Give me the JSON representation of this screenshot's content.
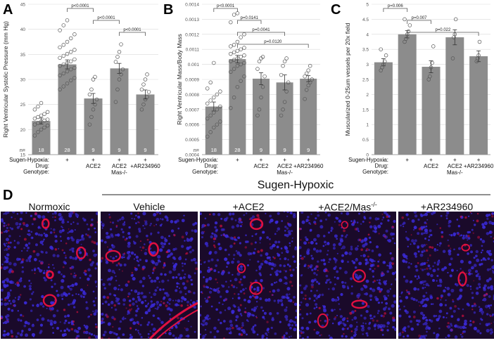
{
  "panels": {
    "A": "A",
    "B": "B",
    "C": "C",
    "D": "D"
  },
  "row_labels": {
    "sugen": "Sugen-Hypoxia:",
    "drug": "Drug:",
    "genotype": "Genotype:",
    "n": "n="
  },
  "groups": [
    {
      "sugen": "-",
      "drug": "",
      "genotype": ""
    },
    {
      "sugen": "+",
      "drug": "",
      "genotype": ""
    },
    {
      "sugen": "+",
      "drug": "ACE2",
      "genotype": ""
    },
    {
      "sugen": "+",
      "drug": "ACE2",
      "genotype": "Mas-/-"
    },
    {
      "sugen": "+",
      "drug": "+AR234960",
      "genotype": ""
    }
  ],
  "chart_data": [
    {
      "type": "bar",
      "panel": "A",
      "ylabel": "Right Ventricular Systolic Pressure (mm Hg)",
      "ylim": [
        15,
        45
      ],
      "yticks": [
        "15",
        "20",
        "25",
        "30",
        "35",
        "40",
        "45"
      ],
      "values": [
        21.7,
        33.0,
        26.2,
        32.2,
        27.0
      ],
      "errors": [
        0.6,
        0.9,
        1.0,
        1.0,
        0.9
      ],
      "n": [
        "18",
        "28",
        "9",
        "9",
        "9"
      ],
      "points": [
        [
          18.8,
          19.5,
          20.0,
          20.4,
          20.8,
          21.0,
          21.3,
          21.6,
          21.8,
          22.0,
          22.2,
          22.5,
          22.8,
          23.1,
          23.5,
          24.0,
          24.6,
          25.3
        ],
        [
          28.0,
          28.6,
          29.2,
          29.8,
          30.3,
          30.8,
          31.2,
          31.6,
          32.0,
          32.3,
          32.7,
          33.0,
          33.3,
          33.6,
          34.0,
          34.3,
          34.7,
          35.1,
          35.5,
          35.9,
          36.4,
          36.9,
          37.5,
          38.2,
          39.0,
          39.8,
          40.8,
          41.8
        ],
        [
          21.0,
          22.5,
          24.0,
          25.0,
          26.0,
          27.0,
          28.0,
          30.0,
          30.5
        ],
        [
          25.5,
          28.0,
          30.0,
          31.0,
          32.0,
          33.5,
          34.5,
          35.5,
          37.0
        ],
        [
          24.0,
          25.0,
          26.0,
          26.5,
          27.5,
          28.0,
          29.0,
          30.0,
          31.0
        ]
      ],
      "comparisons": [
        {
          "label": "p<0.0001",
          "from": 1,
          "to": 2
        },
        {
          "label": "p<0.0001",
          "from": 2,
          "to": 3
        },
        {
          "label": "p<0.0001",
          "from": 3,
          "to": 4
        }
      ]
    },
    {
      "type": "bar",
      "panel": "B",
      "ylabel": "Right Ventricular Mass/Body Mass",
      "ylim": [
        0.0004,
        0.0014
      ],
      "yticks": [
        "0.0004",
        "0.0005",
        "0.0006",
        "0.0007",
        "0.0008",
        "0.0009",
        "0.001",
        "0.0011",
        "0.0012",
        "0.0013",
        "0.0014"
      ],
      "values": [
        0.00072,
        0.001035,
        0.000905,
        0.00088,
        0.000905
      ],
      "errors": [
        3e-05,
        2.5e-05,
        4e-05,
        5e-05,
        2e-05
      ],
      "n": [
        "18",
        "28",
        "9",
        "9",
        "9"
      ],
      "points": [
        [
          0.00052,
          0.00055,
          0.00058,
          0.0006,
          0.00062,
          0.00064,
          0.00066,
          0.00068,
          0.0007,
          0.00072,
          0.00074,
          0.00076,
          0.00078,
          0.0008,
          0.00082,
          0.00084,
          0.00088,
          0.00101
        ],
        [
          0.00071,
          0.00078,
          0.00085,
          0.00089,
          0.00092,
          0.00095,
          0.00097,
          0.00099,
          0.001,
          0.00101,
          0.00102,
          0.00103,
          0.00104,
          0.00105,
          0.00106,
          0.00107,
          0.00108,
          0.00109,
          0.0011,
          0.00111,
          0.00112,
          0.00113,
          0.00115,
          0.00118,
          0.0012,
          0.00128,
          0.00133,
          0.00134
        ],
        [
          0.00066,
          0.0007,
          0.00078,
          0.00085,
          0.00092,
          0.00097,
          0.00102,
          0.00104,
          0.00105
        ],
        [
          0.00066,
          0.0007,
          0.00075,
          0.00082,
          0.00088,
          0.00093,
          0.00099,
          0.00102,
          0.00104
        ],
        [
          0.00077,
          0.00083,
          0.00086,
          0.00088,
          0.0009,
          0.00092,
          0.00094,
          0.00096,
          0.00099
        ]
      ],
      "comparisons": [
        {
          "label": "p<0.0001",
          "from": 0,
          "to": 1
        },
        {
          "label": "p=0.0141",
          "from": 1,
          "to": 2
        },
        {
          "label": "p=0.0041",
          "from": 1,
          "to": 3
        },
        {
          "label": "p=0.0120",
          "from": 1,
          "to": 4
        }
      ]
    },
    {
      "type": "bar",
      "panel": "C",
      "ylabel": "Muscularized 0-25um vessels per 20x field",
      "ylim": [
        0,
        5
      ],
      "yticks": [
        "0",
        "0.5",
        "1",
        "1.5",
        "2",
        "2.5",
        "3",
        "3.5",
        "4",
        "4.5",
        "5"
      ],
      "values": [
        3.07,
        4.0,
        2.92,
        3.9,
        3.27
      ],
      "errors": [
        0.12,
        0.12,
        0.2,
        0.25,
        0.18
      ],
      "n": [],
      "points": [
        [
          2.8,
          2.9,
          3.0,
          3.1,
          3.3,
          3.5
        ],
        [
          3.75,
          3.85,
          4.0,
          4.1,
          4.3,
          4.5
        ],
        [
          2.5,
          2.6,
          2.9,
          3.05,
          3.6
        ],
        [
          3.2,
          3.9,
          4.0,
          4.5
        ],
        [
          3.1,
          3.2,
          3.3,
          3.75
        ]
      ],
      "comparisons": [
        {
          "label": "p=0.006",
          "from": 0,
          "to": 1
        },
        {
          "label": "p=0.007",
          "from": 1,
          "to": 2
        },
        {
          "label": "p=0.022",
          "from": 1,
          "to": 4
        }
      ]
    }
  ],
  "section_title": "Sugen-Hypoxic",
  "micrographs": [
    {
      "label": "Normoxic"
    },
    {
      "label": "Vehicle"
    },
    {
      "label": "+ACE2"
    },
    {
      "label": "+ACE2/Mas",
      "sup": "-/-"
    },
    {
      "label": "+AR234960"
    }
  ],
  "colors": {
    "bar": "#8c8c8c",
    "axis": "#555555",
    "grid": "#d9d9d9",
    "background": "#1a0a2a",
    "nuclei": "#3a2ad8",
    "vessel": "#e01040"
  }
}
